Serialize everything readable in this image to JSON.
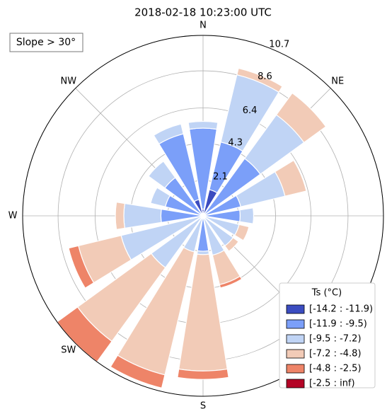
{
  "chart_data": {
    "type": "windrose",
    "title": "2018-02-18 10:23:00 UTC",
    "annotation": "Slope > 30°",
    "categories": [
      "N",
      null,
      "NE",
      null,
      null,
      null,
      null,
      null,
      "S",
      null,
      "SW",
      null,
      "W",
      null,
      "NW",
      null
    ],
    "rlim": [
      0,
      10.7
    ],
    "rticks": [
      2.1,
      4.3,
      6.4,
      8.6,
      10.7
    ],
    "grid": true,
    "legend_title": "Ts (°C)",
    "legend_position": "lower right",
    "series": [
      {
        "name": "[-14.2 : -11.9)",
        "color": "#3b4cc0",
        "values": [
          0.4,
          1.6,
          0,
          0,
          0,
          0,
          0,
          0,
          0,
          0,
          0,
          0,
          0,
          0,
          0,
          1.0
        ]
      },
      {
        "name": "[-11.9 : -9.5)",
        "color": "#7b9ff9",
        "values": [
          4.8,
          2.9,
          4.2,
          2.3,
          2.2,
          0,
          0,
          0,
          2.1,
          0,
          0,
          0,
          2.5,
          2.3,
          2.8,
          4.0
        ]
      },
      {
        "name": "[-9.5 : -7.2)",
        "color": "#c0d4f5",
        "values": [
          0.4,
          4.1,
          3.2,
          2.7,
          0.8,
          2.2,
          2.2,
          2.4,
          0.2,
          2.2,
          3.8,
          5.0,
          2.2,
          0.9,
          1.2,
          0.6
        ]
      },
      {
        "name": "[-7.2 : -4.8)",
        "color": "#f2cbb7",
        "values": [
          0,
          0.4,
          1.6,
          1.3,
          0,
          0.6,
          0.4,
          1.8,
          6.9,
          7.5,
          5.4,
          2.6,
          0.5,
          0,
          0,
          0
        ]
      },
      {
        "name": "[-4.8 : -2.5)",
        "color": "#ee8468",
        "values": [
          0,
          0,
          0,
          0,
          0,
          0,
          0,
          0.2,
          0.5,
          0.8,
          1.5,
          0.6,
          0,
          0,
          0,
          0
        ]
      },
      {
        "name": "[-2.5 : inf)",
        "color": "#b40426",
        "values": [
          0,
          0,
          0,
          0,
          0,
          0,
          0,
          0,
          0,
          0,
          0,
          0,
          0,
          0,
          0,
          0
        ]
      }
    ]
  }
}
